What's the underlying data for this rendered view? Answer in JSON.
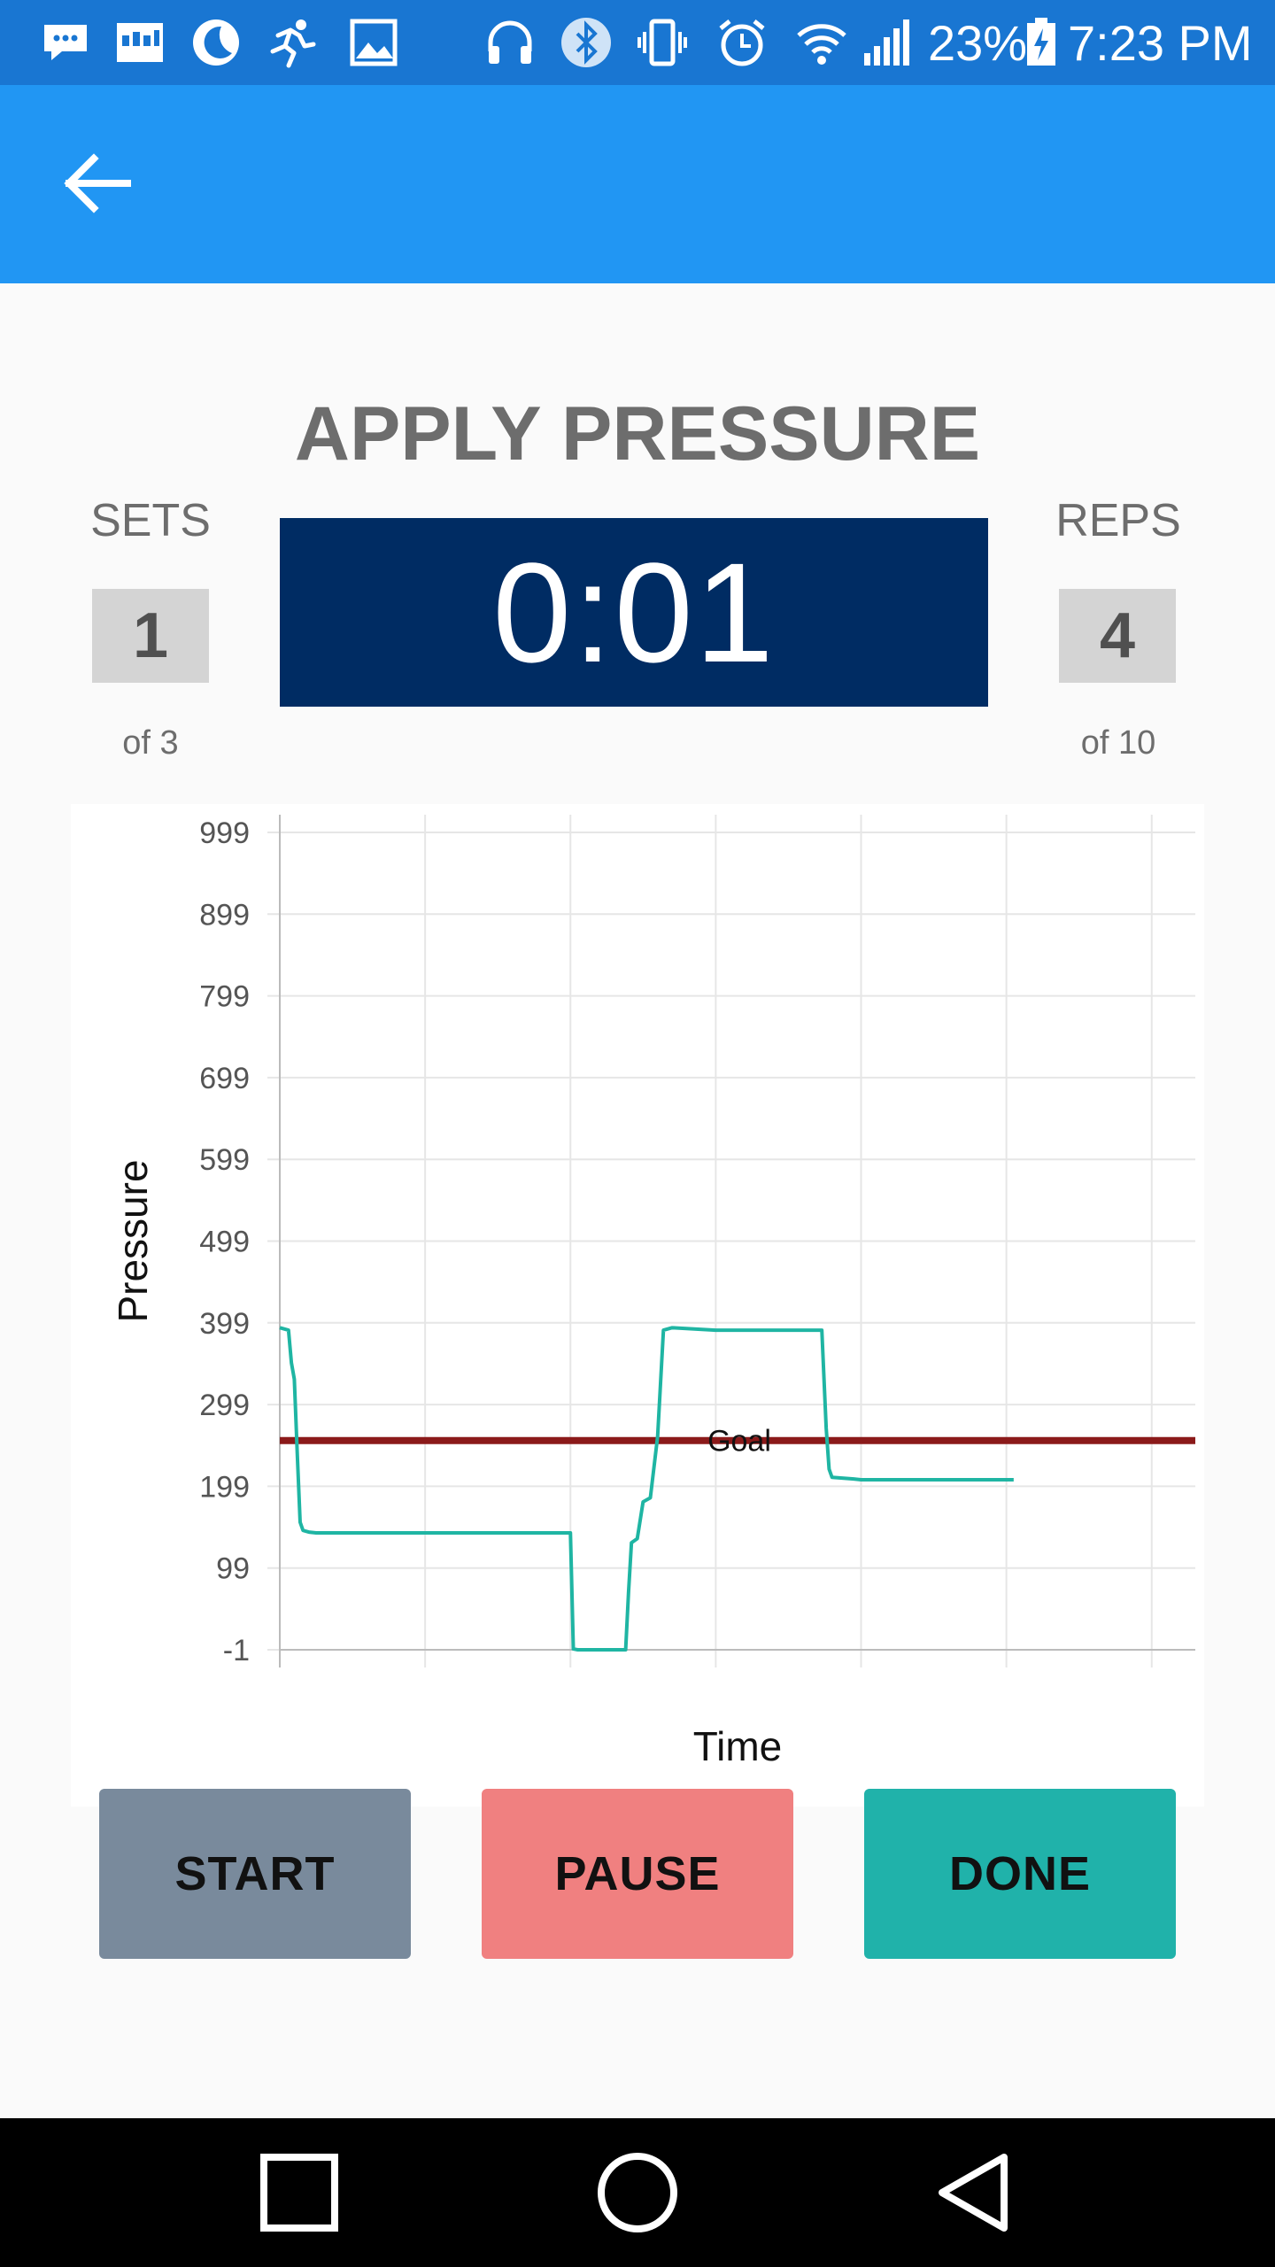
{
  "status_bar": {
    "battery_percent": "23%",
    "time": "7:23 PM",
    "icons": [
      "messages-icon",
      "calendar-icon",
      "moon-icon",
      "running-icon",
      "image-icon",
      "headphones-icon",
      "bluetooth-icon",
      "vibrate-icon",
      "alarm-icon",
      "wifi-icon",
      "signal-icon",
      "battery-charging-icon"
    ]
  },
  "app_bar": {
    "back_icon": "arrow-left-icon"
  },
  "exercise": {
    "title": "APPLY PRESSURE",
    "timer": "0:01",
    "sets": {
      "label": "SETS",
      "value": "1",
      "of_text": "of 3"
    },
    "reps": {
      "label": "REPS",
      "value": "4",
      "of_text": "of 10"
    }
  },
  "chart_data": {
    "type": "line",
    "xlabel": "Time",
    "ylabel": "Pressure",
    "y_ticks": [
      "999",
      "899",
      "799",
      "699",
      "599",
      "499",
      "399",
      "299",
      "199",
      "99",
      "-1"
    ],
    "ylim": [
      -1,
      999
    ],
    "xlim": [
      0,
      6.3
    ],
    "x_ticks_labeled": false,
    "grid": true,
    "goal": {
      "label": "Goal",
      "value": 255,
      "color": "#8b1a1a"
    },
    "series": [
      {
        "color": "#1fb5a3",
        "x": [
          0,
          0.06,
          0.08,
          0.1,
          0.12,
          0.14,
          0.16,
          0.2,
          0.25,
          1.0,
          2.0,
          2.02,
          2.05,
          2.38,
          2.4,
          2.42,
          2.46,
          2.5,
          2.55,
          2.6,
          2.64,
          2.7,
          3.0,
          3.5,
          3.73,
          3.76,
          3.78,
          3.8,
          3.95,
          4.0,
          5.05
        ],
        "y": [
          393,
          390,
          350,
          330,
          240,
          155,
          145,
          143,
          142,
          142,
          142,
          0,
          -1,
          -1,
          70,
          130,
          135,
          180,
          185,
          260,
          390,
          393,
          390,
          390,
          390,
          270,
          220,
          210,
          208,
          207,
          207
        ]
      }
    ]
  },
  "buttons": {
    "start": {
      "label": "START",
      "color": "#798a9c"
    },
    "pause": {
      "label": "PAUSE",
      "color": "#f08080"
    },
    "done": {
      "label": "DONE",
      "color": "#20b2aa"
    }
  },
  "nav_bar": {
    "icons": [
      "recents-square-icon",
      "home-circle-icon",
      "back-triangle-icon"
    ]
  }
}
